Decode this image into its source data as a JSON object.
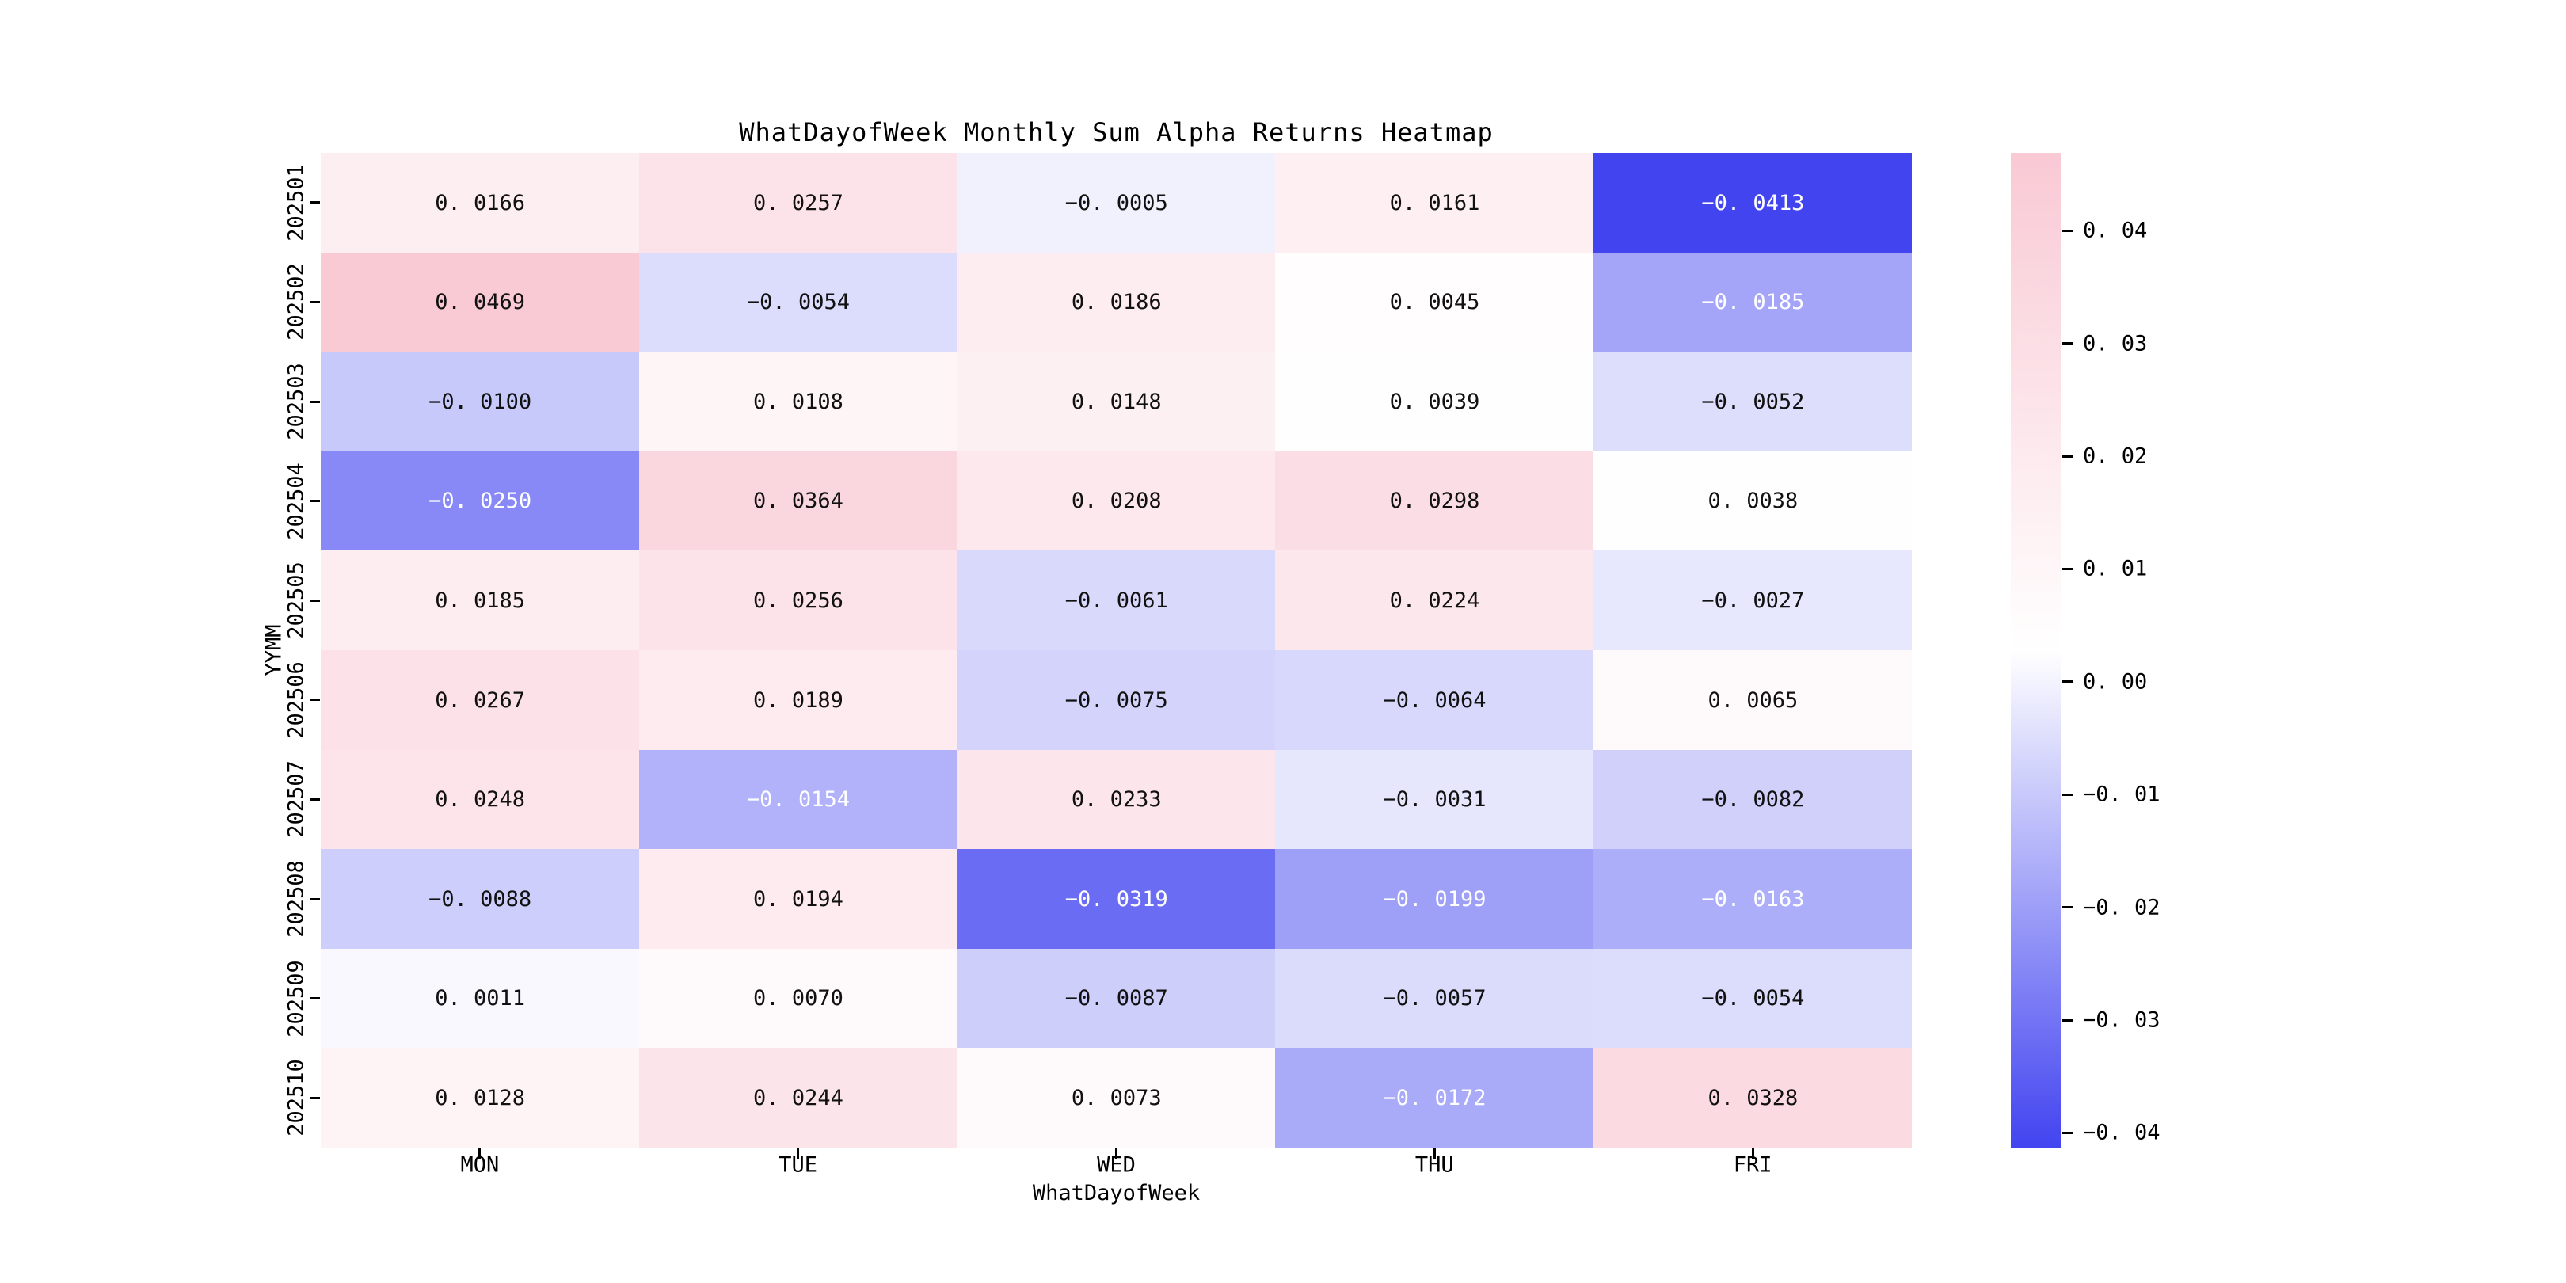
{
  "title": "WhatDayofWeek Monthly Sum Alpha Returns Heatmap",
  "x_axis_label": "WhatDayofWeek",
  "y_axis_label": "YYMM",
  "chart_data": {
    "type": "heatmap",
    "title": "WhatDayofWeek Monthly Sum Alpha Returns Heatmap",
    "xlabel": "WhatDayofWeek",
    "ylabel": "YYMM",
    "x_categories": [
      "MON",
      "TUE",
      "WED",
      "THU",
      "FRI"
    ],
    "y_categories": [
      "202501",
      "202502",
      "202503",
      "202504",
      "202505",
      "202506",
      "202507",
      "202508",
      "202509",
      "202510"
    ],
    "values": [
      [
        0.0166,
        0.0257,
        -0.0005,
        0.0161,
        -0.0413
      ],
      [
        0.0469,
        -0.0054,
        0.0186,
        0.0045,
        -0.0185
      ],
      [
        -0.01,
        0.0108,
        0.0148,
        0.0039,
        -0.0052
      ],
      [
        -0.025,
        0.0364,
        0.0208,
        0.0298,
        0.0038
      ],
      [
        0.0185,
        0.0256,
        -0.0061,
        0.0224,
        -0.0027
      ],
      [
        0.0267,
        0.0189,
        -0.0075,
        -0.0064,
        0.0065
      ],
      [
        0.0248,
        -0.0154,
        0.0233,
        -0.0031,
        -0.0082
      ],
      [
        -0.0088,
        0.0194,
        -0.0319,
        -0.0199,
        -0.0163
      ],
      [
        0.0011,
        0.007,
        -0.0087,
        -0.0057,
        -0.0054
      ],
      [
        0.0128,
        0.0244,
        0.0073,
        -0.0172,
        0.0328
      ]
    ],
    "value_decimals": 4,
    "vmin": -0.0413,
    "vmax": 0.0469,
    "colorbar_ticks": [
      0.04,
      0.03,
      0.02,
      0.01,
      0.0,
      -0.01,
      -0.02,
      -0.03,
      -0.04
    ],
    "colorbar_tick_decimals": 2,
    "colorbar_position": "right",
    "grid": false,
    "colors": {
      "positive_end": "#f9c9d4",
      "center": "#ffffff",
      "negative_end": "#4244f0",
      "annotation_dark": "#111111",
      "annotation_light": "#ffffff",
      "background": "#ffffff"
    }
  }
}
